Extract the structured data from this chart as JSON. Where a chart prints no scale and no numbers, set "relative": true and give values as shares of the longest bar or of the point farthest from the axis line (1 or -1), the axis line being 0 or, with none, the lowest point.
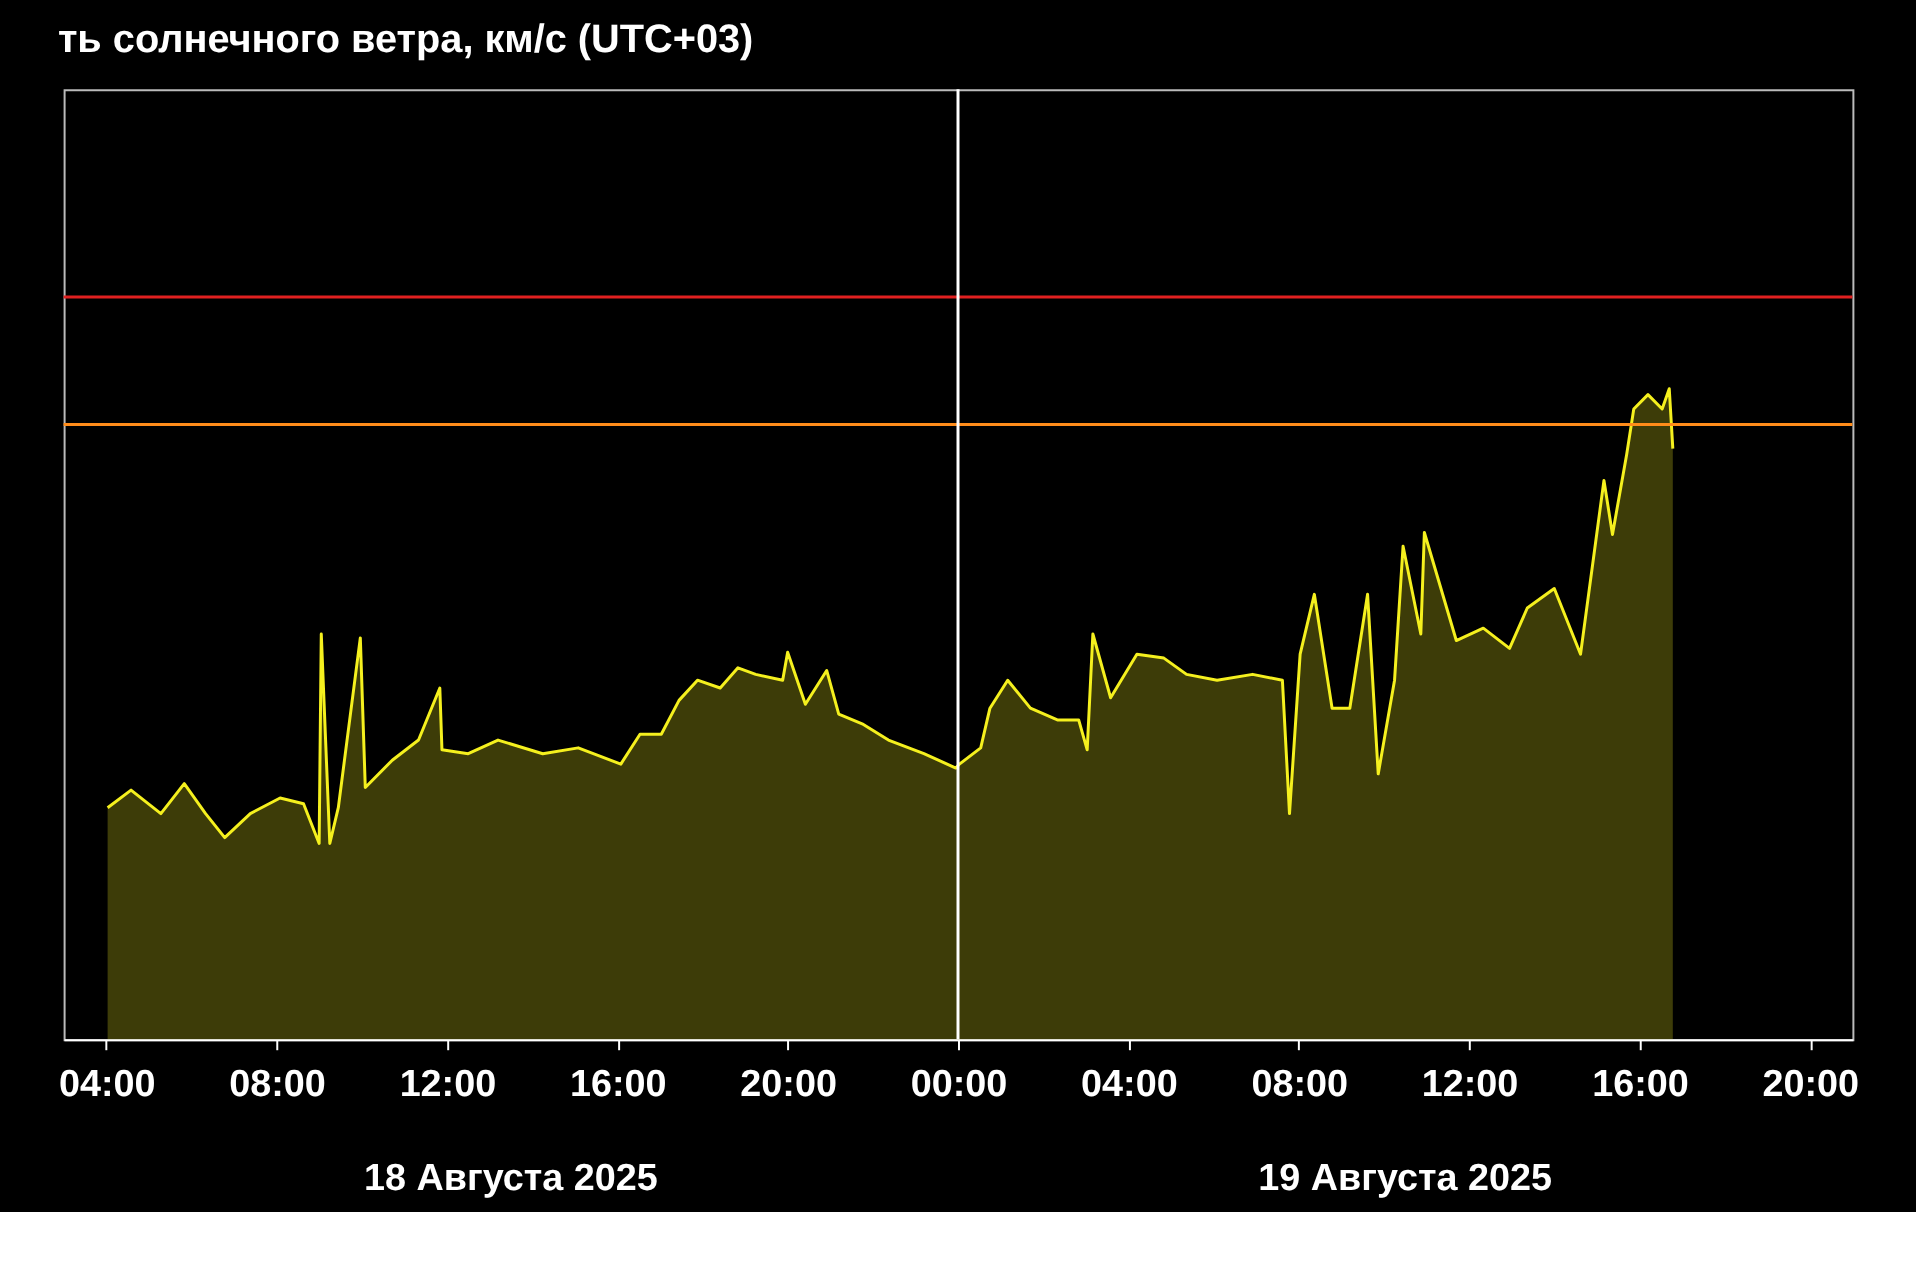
{
  "chart_data": {
    "type": "area",
    "title": "ть солнечного ветра, км/с (UTC+03)",
    "relative": true,
    "x": [
      "2025-08-18T04:02",
      "2025-08-18T04:35",
      "2025-08-18T05:17",
      "2025-08-18T05:50",
      "2025-08-18T06:20",
      "2025-08-18T06:47",
      "2025-08-18T07:23",
      "2025-08-18T08:05",
      "2025-08-18T08:38",
      "2025-08-18T09:00",
      "2025-08-18T09:03",
      "2025-08-18T09:15",
      "2025-08-18T09:27",
      "2025-08-18T09:58",
      "2025-08-18T10:05",
      "2025-08-18T10:43",
      "2025-08-18T11:20",
      "2025-08-18T11:50",
      "2025-08-18T11:53",
      "2025-08-18T12:30",
      "2025-08-18T13:12",
      "2025-08-18T14:15",
      "2025-08-18T15:05",
      "2025-08-18T16:05",
      "2025-08-18T16:32",
      "2025-08-18T17:02",
      "2025-08-18T17:27",
      "2025-08-18T17:53",
      "2025-08-18T18:25",
      "2025-08-18T18:50",
      "2025-08-18T19:15",
      "2025-08-18T19:53",
      "2025-08-18T20:00",
      "2025-08-18T20:25",
      "2025-08-18T20:55",
      "2025-08-18T21:12",
      "2025-08-18T21:45",
      "2025-08-18T22:22",
      "2025-08-18T23:12",
      "2025-08-18T23:57",
      "2025-08-19T00:02",
      "2025-08-19T00:32",
      "2025-08-19T00:45",
      "2025-08-19T01:10",
      "2025-08-19T01:42",
      "2025-08-19T02:20",
      "2025-08-19T02:50",
      "2025-08-19T03:02",
      "2025-08-19T03:10",
      "2025-08-19T03:35",
      "2025-08-19T04:12",
      "2025-08-19T04:50",
      "2025-08-19T05:22",
      "2025-08-19T06:05",
      "2025-08-19T06:55",
      "2025-08-19T07:37",
      "2025-08-19T07:47",
      "2025-08-19T08:02",
      "2025-08-19T08:22",
      "2025-08-19T08:47",
      "2025-08-19T09:12",
      "2025-08-19T09:37",
      "2025-08-19T09:52",
      "2025-08-19T10:15",
      "2025-08-19T10:27",
      "2025-08-19T10:52",
      "2025-08-19T10:57",
      "2025-08-19T11:42",
      "2025-08-19T12:20",
      "2025-08-19T12:57",
      "2025-08-19T13:22",
      "2025-08-19T14:00",
      "2025-08-19T14:37",
      "2025-08-19T15:10",
      "2025-08-19T15:22",
      "2025-08-19T15:42",
      "2025-08-19T15:52",
      "2025-08-19T16:12",
      "2025-08-19T16:32",
      "2025-08-19T16:42",
      "2025-08-19T16:47"
    ],
    "series": [
      {
        "color": "#f5f01e",
        "values": [
          0.356,
          0.383,
          0.347,
          0.393,
          0.347,
          0.31,
          0.347,
          0.371,
          0.362,
          0.301,
          0.623,
          0.301,
          0.356,
          0.617,
          0.387,
          0.429,
          0.46,
          0.54,
          0.445,
          0.439,
          0.46,
          0.439,
          0.448,
          0.423,
          0.469,
          0.469,
          0.521,
          0.552,
          0.54,
          0.571,
          0.561,
          0.552,
          0.595,
          0.515,
          0.567,
          0.5,
          0.485,
          0.46,
          0.439,
          0.417,
          0.423,
          0.448,
          0.509,
          0.552,
          0.509,
          0.491,
          0.491,
          0.445,
          0.623,
          0.525,
          0.592,
          0.586,
          0.561,
          0.552,
          0.561,
          0.552,
          0.347,
          0.592,
          0.684,
          0.509,
          0.509,
          0.684,
          0.408,
          0.552,
          0.758,
          0.623,
          0.779,
          0.613,
          0.632,
          0.601,
          0.663,
          0.693,
          0.592,
          0.859,
          0.776,
          0.899,
          0.969,
          0.991,
          0.969,
          1.0,
          0.908
        ]
      }
    ],
    "xlim": [
      "2025-08-18T03:00",
      "2025-08-19T21:00"
    ],
    "xticks": [
      {
        "value": "2025-08-18T04:00",
        "label": "04:00"
      },
      {
        "value": "2025-08-18T08:00",
        "label": "08:00"
      },
      {
        "value": "2025-08-18T12:00",
        "label": "12:00"
      },
      {
        "value": "2025-08-18T16:00",
        "label": "16:00"
      },
      {
        "value": "2025-08-18T20:00",
        "label": "20:00"
      },
      {
        "value": "2025-08-19T00:00",
        "label": "00:00"
      },
      {
        "value": "2025-08-19T04:00",
        "label": "04:00"
      },
      {
        "value": "2025-08-19T08:00",
        "label": "08:00"
      },
      {
        "value": "2025-08-19T12:00",
        "label": "12:00"
      },
      {
        "value": "2025-08-19T16:00",
        "label": "16:00"
      },
      {
        "value": "2025-08-19T20:00",
        "label": "20:00"
      }
    ],
    "ref_lines": [
      {
        "axis": "y",
        "value": 0.945,
        "color": "#ff8c1a"
      },
      {
        "axis": "y",
        "value": 1.141,
        "color": "#e02020"
      },
      {
        "axis": "x",
        "value": "2025-08-19T00:00",
        "color": "#ffffff"
      }
    ],
    "annotations": [
      "18 Августа 2025",
      "19 Августа 2025"
    ]
  }
}
